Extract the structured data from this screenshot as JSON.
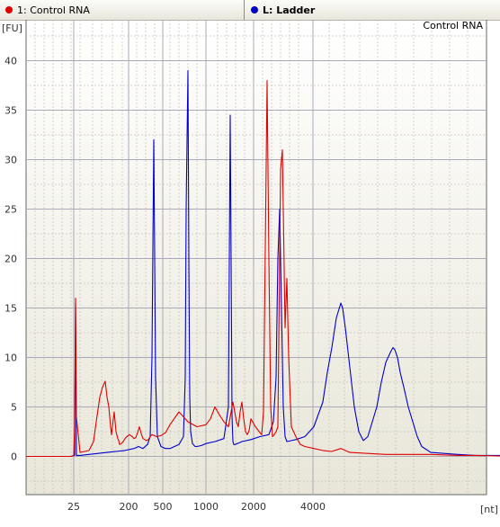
{
  "tabs": [
    {
      "label": "1: Control RNA",
      "color": "#e00000"
    },
    {
      "label": "L: Ladder",
      "color": "#0000cc"
    }
  ],
  "chart_data": {
    "type": "line",
    "title": "Control RNA",
    "ylabel": "[FU]",
    "xlabel": "[nt]",
    "ylim": [
      -4,
      43
    ],
    "yticks": [
      0,
      5,
      10,
      15,
      20,
      25,
      30,
      35,
      40
    ],
    "xticks": [
      "25",
      "200",
      "500",
      "1000",
      "2000",
      "4000"
    ],
    "grid": true,
    "series": [
      {
        "name": "1: Control RNA",
        "color": "#e00000",
        "x": [
          0,
          50,
          53,
          54,
          55,
          56,
          60,
          65,
          70,
          75,
          78,
          82,
          85,
          88,
          90,
          92,
          94,
          95,
          96,
          98,
          100,
          102,
          103,
          104,
          106,
          108,
          110,
          112,
          115,
          118,
          120,
          122,
          124,
          126,
          128,
          130,
          132,
          134,
          136,
          138,
          140,
          145,
          150,
          155,
          160,
          170,
          175,
          180,
          190,
          200,
          205,
          210,
          215,
          220,
          225,
          230,
          232,
          234,
          236,
          238,
          240,
          242,
          244,
          246,
          248,
          250,
          255,
          260,
          262,
          264,
          266,
          268,
          270,
          272,
          274,
          276,
          278,
          280,
          283,
          285,
          288,
          290,
          292,
          295,
          300,
          305,
          310,
          320,
          330,
          340,
          350,
          360,
          380,
          400,
          420,
          450,
          480,
          500,
          541
        ],
        "y": [
          0,
          0,
          0.1,
          3,
          16,
          4,
          0.4,
          0.5,
          0.6,
          1.5,
          3.5,
          6,
          7,
          7.6,
          6,
          5,
          3,
          2.2,
          3,
          4.5,
          2.5,
          1.8,
          1.6,
          1.2,
          1.3,
          1.5,
          1.8,
          2,
          2.2,
          2,
          1.8,
          1.9,
          2.4,
          3,
          2.3,
          1.8,
          1.7,
          1.6,
          1.7,
          2,
          2.2,
          2,
          2.1,
          2.4,
          3.2,
          4.5,
          4,
          3.5,
          3,
          3.2,
          3.8,
          5,
          4.2,
          3.5,
          3,
          5.5,
          4.5,
          3.5,
          3,
          4.5,
          5.5,
          3.8,
          2.5,
          2.2,
          2.6,
          3.8,
          3,
          2.4,
          2.2,
          4.5,
          21,
          38,
          20,
          5,
          2,
          2.2,
          2.5,
          3,
          29,
          31,
          13,
          18,
          10,
          3,
          2,
          1.2,
          1,
          0.8,
          0.6,
          0.5,
          0.8,
          0.4,
          0.3,
          0.2,
          0.2,
          0.2,
          0.1,
          0.1,
          0
        ]
      },
      {
        "name": "L: Ladder",
        "color": "#0000cc",
        "x": [
          0,
          50,
          54,
          55,
          56,
          60,
          70,
          80,
          90,
          100,
          110,
          120,
          125,
          130,
          135,
          138,
          140,
          142,
          144,
          146,
          150,
          155,
          160,
          165,
          170,
          175,
          177,
          178,
          180,
          181,
          182,
          183,
          185,
          188,
          190,
          195,
          200,
          210,
          220,
          225,
          226,
          227,
          228,
          229,
          230,
          231,
          232,
          235,
          240,
          250,
          260,
          270,
          275,
          278,
          280,
          282,
          284,
          286,
          288,
          290,
          295,
          300,
          310,
          320,
          330,
          335,
          340,
          345,
          350,
          352,
          355,
          360,
          365,
          370,
          375,
          380,
          385,
          390,
          395,
          400,
          405,
          408,
          410,
          413,
          416,
          420,
          425,
          430,
          435,
          440,
          450,
          480,
          500,
          541
        ],
        "y": [
          0,
          0,
          0.1,
          15.5,
          0.1,
          0.1,
          0.2,
          0.3,
          0.4,
          0.5,
          0.6,
          0.8,
          1,
          0.8,
          1.2,
          2,
          10,
          32,
          8,
          2,
          1,
          0.8,
          0.8,
          1,
          1.2,
          2,
          8,
          25,
          39,
          20,
          6,
          2.5,
          1.3,
          1,
          1,
          1.1,
          1.3,
          1.5,
          1.8,
          5,
          20,
          34.5,
          20,
          4,
          1.5,
          1.2,
          1.2,
          1.3,
          1.5,
          1.7,
          2,
          2.2,
          3.5,
          8,
          20,
          25,
          15,
          5,
          2,
          1.5,
          1.6,
          1.7,
          2,
          3,
          5.5,
          8.5,
          11,
          14,
          15.5,
          15,
          13,
          9,
          5,
          2.5,
          1.6,
          2,
          3.5,
          5,
          7.5,
          9.5,
          10.5,
          11,
          10.8,
          10,
          8.5,
          7,
          5,
          3.5,
          2,
          1,
          0.4,
          0.2,
          0.1,
          0.1
        ]
      }
    ]
  }
}
